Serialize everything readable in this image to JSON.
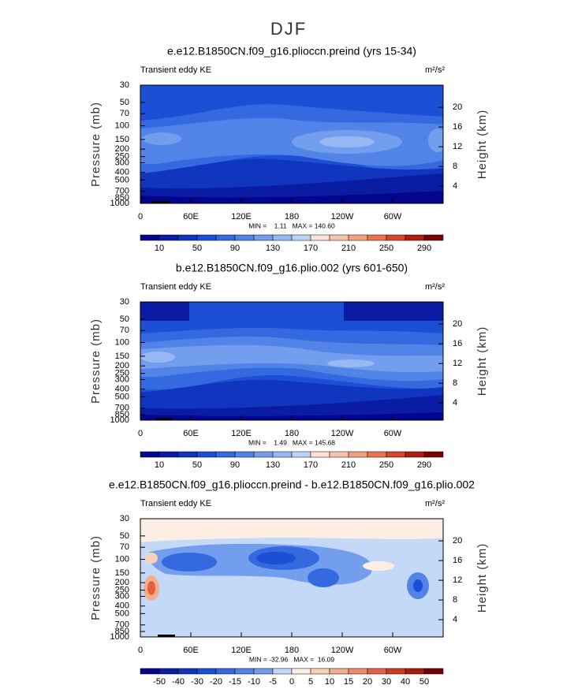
{
  "title": "DJF",
  "chart_data": [
    {
      "type": "contour",
      "title": "e.e12.B1850CN.f09_g16.plioccn.preind (yrs 15-34)",
      "left_label": "Transient eddy KE",
      "units": "m²/s²",
      "ylabel": "Pressure (mb)",
      "y2label": "Height (km)",
      "xlim": [
        0,
        360
      ],
      "xticks": [
        0,
        {
          "value": 60,
          "label": "60E"
        },
        {
          "value": 120,
          "label": "120E"
        },
        180,
        {
          "value": 240,
          "label": "120W"
        },
        {
          "value": 300,
          "label": "60W"
        }
      ],
      "ylim": [
        1000,
        30
      ],
      "ylog": true,
      "yticks": [
        30,
        50,
        70,
        100,
        150,
        200,
        250,
        300,
        400,
        500,
        700,
        850,
        1000
      ],
      "y2lim": [
        0.5,
        24.5
      ],
      "y2ticks": [
        4,
        8,
        12,
        16,
        20
      ],
      "stats_text": "MIN =    1.11   MAX = 140.60",
      "colorbar": {
        "levels": [
          10,
          30,
          50,
          70,
          90,
          110,
          130,
          150,
          170,
          190,
          210,
          230,
          250,
          270,
          290
        ],
        "ticks": [
          10,
          50,
          90,
          130,
          170,
          210,
          250,
          290
        ],
        "colors": [
          "#03058c",
          "#0a1ca4",
          "#1036c0",
          "#1d4fd6",
          "#3569e0",
          "#5283e6",
          "#739ded",
          "#97b8f2",
          "#bcd2f7",
          "#fbe3d7",
          "#f9c4ac",
          "#f3a07f",
          "#ea7450",
          "#d7452a",
          "#b01c11",
          "#7d0000"
        ]
      }
    },
    {
      "type": "contour",
      "title": "b.e12.B1850CN.f09_g16.plio.002 (yrs 601-650)",
      "left_label": "Transient eddy KE",
      "units": "m²/s²",
      "ylabel": "Pressure (mb)",
      "y2label": "Height (km)",
      "xlim": [
        0,
        360
      ],
      "xticks": [
        0,
        {
          "value": 60,
          "label": "60E"
        },
        {
          "value": 120,
          "label": "120E"
        },
        180,
        {
          "value": 240,
          "label": "120W"
        },
        {
          "value": 300,
          "label": "60W"
        }
      ],
      "ylim": [
        1000,
        30
      ],
      "ylog": true,
      "yticks": [
        30,
        50,
        70,
        100,
        150,
        200,
        250,
        300,
        400,
        500,
        700,
        850,
        1000
      ],
      "y2lim": [
        0.5,
        24.5
      ],
      "y2ticks": [
        4,
        8,
        12,
        16,
        20
      ],
      "stats_text": "MIN =    1.49   MAX = 145.68",
      "colorbar": {
        "levels": [
          10,
          30,
          50,
          70,
          90,
          110,
          130,
          150,
          170,
          190,
          210,
          230,
          250,
          270,
          290
        ],
        "ticks": [
          10,
          50,
          90,
          130,
          170,
          210,
          250,
          290
        ],
        "colors": [
          "#03058c",
          "#0a1ca4",
          "#1036c0",
          "#1d4fd6",
          "#3569e0",
          "#5283e6",
          "#739ded",
          "#97b8f2",
          "#bcd2f7",
          "#fbe3d7",
          "#f9c4ac",
          "#f3a07f",
          "#ea7450",
          "#d7452a",
          "#b01c11",
          "#7d0000"
        ]
      }
    },
    {
      "type": "contour",
      "title": "e.e12.B1850CN.f09_g16.plioccn.preind - b.e12.B1850CN.f09_g16.plio.002",
      "left_label": "Transient eddy KE",
      "units": "m²/s²",
      "ylabel": "Pressure (mb)",
      "y2label": "Height (km)",
      "xlim": [
        0,
        360
      ],
      "xticks": [
        0,
        {
          "value": 60,
          "label": "60E"
        },
        {
          "value": 120,
          "label": "120E"
        },
        180,
        {
          "value": 240,
          "label": "120W"
        },
        {
          "value": 300,
          "label": "60W"
        }
      ],
      "ylim": [
        1000,
        30
      ],
      "ylog": true,
      "yticks": [
        30,
        50,
        70,
        100,
        150,
        200,
        250,
        300,
        400,
        500,
        700,
        850,
        1000
      ],
      "y2lim": [
        0.5,
        24.5
      ],
      "y2ticks": [
        4,
        8,
        12,
        16,
        20
      ],
      "stats_text": "MIN = -32.96   MAX =  16.09",
      "colorbar": {
        "levels": [
          -50,
          -40,
          -30,
          -20,
          -15,
          -10,
          -5,
          0,
          5,
          10,
          15,
          20,
          30,
          40,
          50
        ],
        "ticks": [
          -50,
          -40,
          -30,
          -20,
          -15,
          -10,
          -5,
          0,
          5,
          10,
          15,
          20,
          30,
          40,
          50
        ],
        "colors": [
          "#03058c",
          "#0a1ca4",
          "#1036c0",
          "#1d4fd6",
          "#3569e0",
          "#5283e6",
          "#739ded",
          "#c4d8f8",
          "#fdeee4",
          "#f9d0b8",
          "#f4ae8e",
          "#ee8b68",
          "#e36244",
          "#cf3a24",
          "#a81a0e",
          "#730000"
        ]
      }
    }
  ]
}
